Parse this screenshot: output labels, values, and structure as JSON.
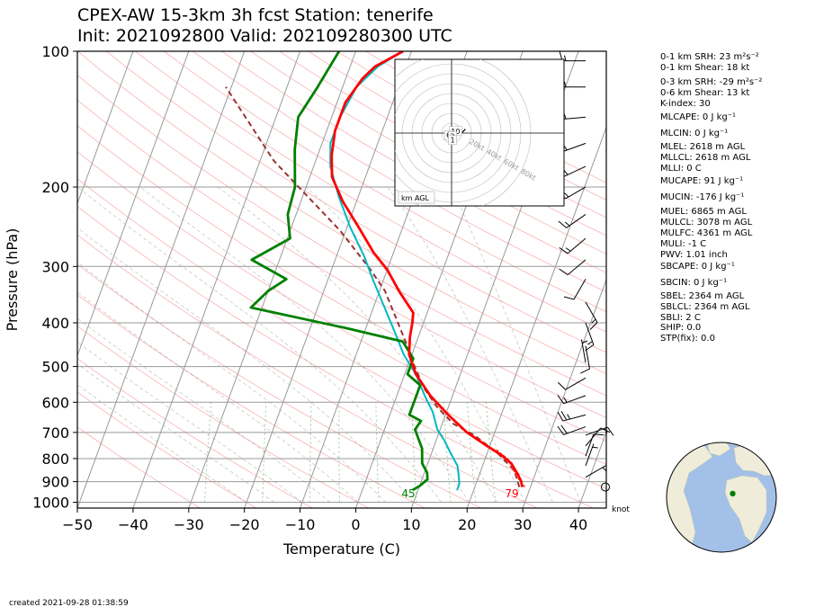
{
  "header": {
    "title_line1": "CPEX-AW 15-3km  3h fcst  Station: tenerife",
    "title_line2": "Init: 2021092800  Valid: 202109280300 UTC"
  },
  "footer": {
    "created": "created 2021-09-28 01:38:59"
  },
  "chart_data": {
    "type": "skew-t",
    "xlabel": "Temperature (C)",
    "ylabel": "Pressure (hPa)",
    "xlim": [
      -50,
      45
    ],
    "ylim": [
      1030,
      100
    ],
    "log_pressure_axis": true,
    "x_ticks": [
      -50,
      -40,
      -30,
      -20,
      -10,
      0,
      10,
      20,
      30,
      40
    ],
    "x_tick_labels": [
      "−50",
      "−40",
      "−30",
      "−20",
      "−10",
      "0",
      "10",
      "20",
      "30",
      "40"
    ],
    "y_ticks": [
      100,
      200,
      300,
      400,
      500,
      600,
      700,
      800,
      900,
      1000
    ],
    "y_tick_labels": [
      "100",
      "200",
      "300",
      "400",
      "500",
      "600",
      "700",
      "800",
      "900",
      "1000"
    ],
    "isobar_grid": true,
    "wind_unit_label": "knot",
    "surface_dewpoint_f_label": "45",
    "surface_temperature_f_label": "79",
    "series": [
      {
        "key": "temperature",
        "color": "#ff0000",
        "points": [
          [
            28.5,
            925
          ],
          [
            28.0,
            900
          ],
          [
            27.0,
            870
          ],
          [
            25.0,
            820
          ],
          [
            23.0,
            790
          ],
          [
            19.5,
            750
          ],
          [
            15.0,
            700
          ],
          [
            10.5,
            640
          ],
          [
            6.0,
            580
          ],
          [
            2.0,
            520
          ],
          [
            -0.5,
            470
          ],
          [
            -1.5,
            430
          ],
          [
            -2.0,
            400
          ],
          [
            -2.5,
            380
          ],
          [
            -6.5,
            340
          ],
          [
            -10.0,
            305
          ],
          [
            -13.5,
            280
          ],
          [
            -18.0,
            245
          ],
          [
            -22.5,
            215
          ],
          [
            -26.0,
            190
          ],
          [
            -27.5,
            170
          ],
          [
            -28.5,
            150
          ],
          [
            -28.5,
            130
          ],
          [
            -27.0,
            115
          ],
          [
            -25.5,
            108
          ],
          [
            -21.5,
            100
          ]
        ]
      },
      {
        "key": "parcel",
        "color": "#993333",
        "points": [
          [
            28.0,
            925
          ],
          [
            26.0,
            850
          ],
          [
            22.0,
            780
          ],
          [
            16.5,
            710
          ],
          [
            12.0,
            670
          ],
          [
            8.0,
            615
          ],
          [
            4.5,
            560
          ],
          [
            1.0,
            495
          ],
          [
            -2.0,
            440
          ],
          [
            -9.0,
            340
          ],
          [
            -13.0,
            305
          ],
          [
            -21.0,
            250
          ],
          [
            -37.5,
            175
          ],
          [
            -51.0,
            120
          ]
        ]
      },
      {
        "key": "virtual_temperature",
        "color": "#ff3333",
        "points": [
          [
            29.0,
            925
          ],
          [
            27.0,
            880
          ],
          [
            24.0,
            800
          ],
          [
            21.0,
            760
          ]
        ]
      },
      {
        "key": "wetbulb",
        "color": "#00b8c4",
        "points": [
          [
            17.0,
            940
          ],
          [
            17.0,
            910
          ],
          [
            16.5,
            880
          ],
          [
            15.5,
            830
          ],
          [
            13.5,
            780
          ],
          [
            11.5,
            730
          ],
          [
            9.5,
            690
          ],
          [
            7.5,
            630
          ],
          [
            5.0,
            580
          ],
          [
            2.0,
            520
          ],
          [
            -1.5,
            470
          ],
          [
            -4.5,
            420
          ],
          [
            -8.0,
            370
          ],
          [
            -12.0,
            320
          ],
          [
            -15.0,
            285
          ],
          [
            -19.5,
            245
          ],
          [
            -23.5,
            210
          ],
          [
            -27.0,
            180
          ],
          [
            -28.5,
            160
          ],
          [
            -28.5,
            140
          ],
          [
            -27.5,
            120
          ],
          [
            -25.0,
            108
          ],
          [
            -21.5,
            100
          ]
        ]
      },
      {
        "key": "dewpoint",
        "color": "#008000",
        "points": [
          [
            9.0,
            940
          ],
          [
            10.0,
            920
          ],
          [
            11.0,
            890
          ],
          [
            10.5,
            860
          ],
          [
            9.0,
            820
          ],
          [
            8.0,
            760
          ],
          [
            5.5,
            690
          ],
          [
            6.0,
            660
          ],
          [
            3.5,
            640
          ],
          [
            3.5,
            600
          ],
          [
            3.5,
            550
          ],
          [
            0.5,
            520
          ],
          [
            0.5,
            480
          ],
          [
            -2.5,
            440
          ],
          [
            -14.0,
            410
          ],
          [
            -32.0,
            370
          ],
          [
            -30.0,
            340
          ],
          [
            -27.5,
            320
          ],
          [
            -35.0,
            290
          ],
          [
            -29.5,
            260
          ],
          [
            -31.5,
            230
          ],
          [
            -32.0,
            200
          ],
          [
            -34.5,
            165
          ],
          [
            -36.0,
            140
          ],
          [
            -34.5,
            120
          ],
          [
            -33.0,
            100
          ]
        ]
      }
    ],
    "wind_barbs": [
      {
        "p": 925,
        "speed_kt": 0,
        "dir_deg": 0
      },
      {
        "p": 880,
        "speed_kt": 5,
        "dir_deg": 60
      },
      {
        "p": 830,
        "speed_kt": 5,
        "dir_deg": 20
      },
      {
        "p": 790,
        "speed_kt": 10,
        "dir_deg": 20
      },
      {
        "p": 750,
        "speed_kt": 10,
        "dir_deg": 40
      },
      {
        "p": 710,
        "speed_kt": 15,
        "dir_deg": 70
      },
      {
        "p": 680,
        "speed_kt": 20,
        "dir_deg": 250
      },
      {
        "p": 640,
        "speed_kt": 25,
        "dir_deg": 255
      },
      {
        "p": 580,
        "speed_kt": 15,
        "dir_deg": 250
      },
      {
        "p": 530,
        "speed_kt": 10,
        "dir_deg": 240
      },
      {
        "p": 490,
        "speed_kt": 5,
        "dir_deg": 350
      },
      {
        "p": 450,
        "speed_kt": 10,
        "dir_deg": 170
      },
      {
        "p": 400,
        "speed_kt": 15,
        "dir_deg": 160
      },
      {
        "p": 360,
        "speed_kt": 15,
        "dir_deg": 150
      },
      {
        "p": 320,
        "speed_kt": 10,
        "dir_deg": 210
      },
      {
        "p": 290,
        "speed_kt": 10,
        "dir_deg": 230
      },
      {
        "p": 260,
        "speed_kt": 15,
        "dir_deg": 230
      },
      {
        "p": 230,
        "speed_kt": 15,
        "dir_deg": 235
      },
      {
        "p": 200,
        "speed_kt": 15,
        "dir_deg": 240
      },
      {
        "p": 180,
        "speed_kt": 15,
        "dir_deg": 245
      },
      {
        "p": 160,
        "speed_kt": 20,
        "dir_deg": 250
      },
      {
        "p": 140,
        "speed_kt": 15,
        "dir_deg": 265
      },
      {
        "p": 120,
        "speed_kt": 15,
        "dir_deg": 270
      },
      {
        "p": 105,
        "speed_kt": 15,
        "dir_deg": 270
      }
    ],
    "hodograph": {
      "footer_label": "km AGL",
      "ring_labels": [
        "20kt",
        "40kt",
        "60kt",
        "80kt"
      ],
      "height_labels": [
        {
          "text": "10",
          "u": 4,
          "v": 2
        },
        {
          "text": "6",
          "u": -3,
          "v": -2
        },
        {
          "text": "2",
          "u": 1,
          "v": -3
        },
        {
          "text": "1",
          "u": 1,
          "v": -7
        }
      ],
      "trace": [
        [
          0.5,
          -6
        ],
        [
          -1,
          -4
        ],
        [
          0.5,
          -2
        ],
        [
          -2,
          -1
        ],
        [
          -1,
          1
        ],
        [
          2,
          2
        ],
        [
          5,
          2
        ],
        [
          7,
          0
        ],
        [
          9,
          -1
        ],
        [
          11,
          1
        ],
        [
          13,
          3
        ],
        [
          14,
          4
        ]
      ]
    },
    "indices": [
      "0-1 km SRH: 23 m²s⁻²",
      "0-1 km Shear: 18 kt",
      "0-3 km SRH: -29 m²s⁻²",
      "0-6 km Shear: 13 kt",
      "K-index: 30",
      "MLCAPE: 0 J kg⁻¹",
      "MLCIN: 0 J kg⁻¹",
      "MLEL: 2618 m AGL",
      "MLLCL: 2618 m AGL",
      "MLLI: 0 C",
      "MUCAPE: 91 J kg⁻¹",
      "MUCIN: -176 J kg⁻¹",
      "MUEL: 6865 m AGL",
      "MULCL: 3078 m AGL",
      "MULFC: 4361 m AGL",
      "MULI: -1 C",
      "PWV: 1.01 inch",
      "SBCAPE: 0 J kg⁻¹",
      "SBCIN: 0 J kg⁻¹",
      "SBEL: 2364 m AGL",
      "SBLCL: 2364 m AGL",
      "SBLI: 2 C",
      "SHIP: 0.0",
      "STP(fix): 0.0"
    ],
    "station_globe": {
      "lat": 28.3,
      "lon": -16.5
    }
  }
}
